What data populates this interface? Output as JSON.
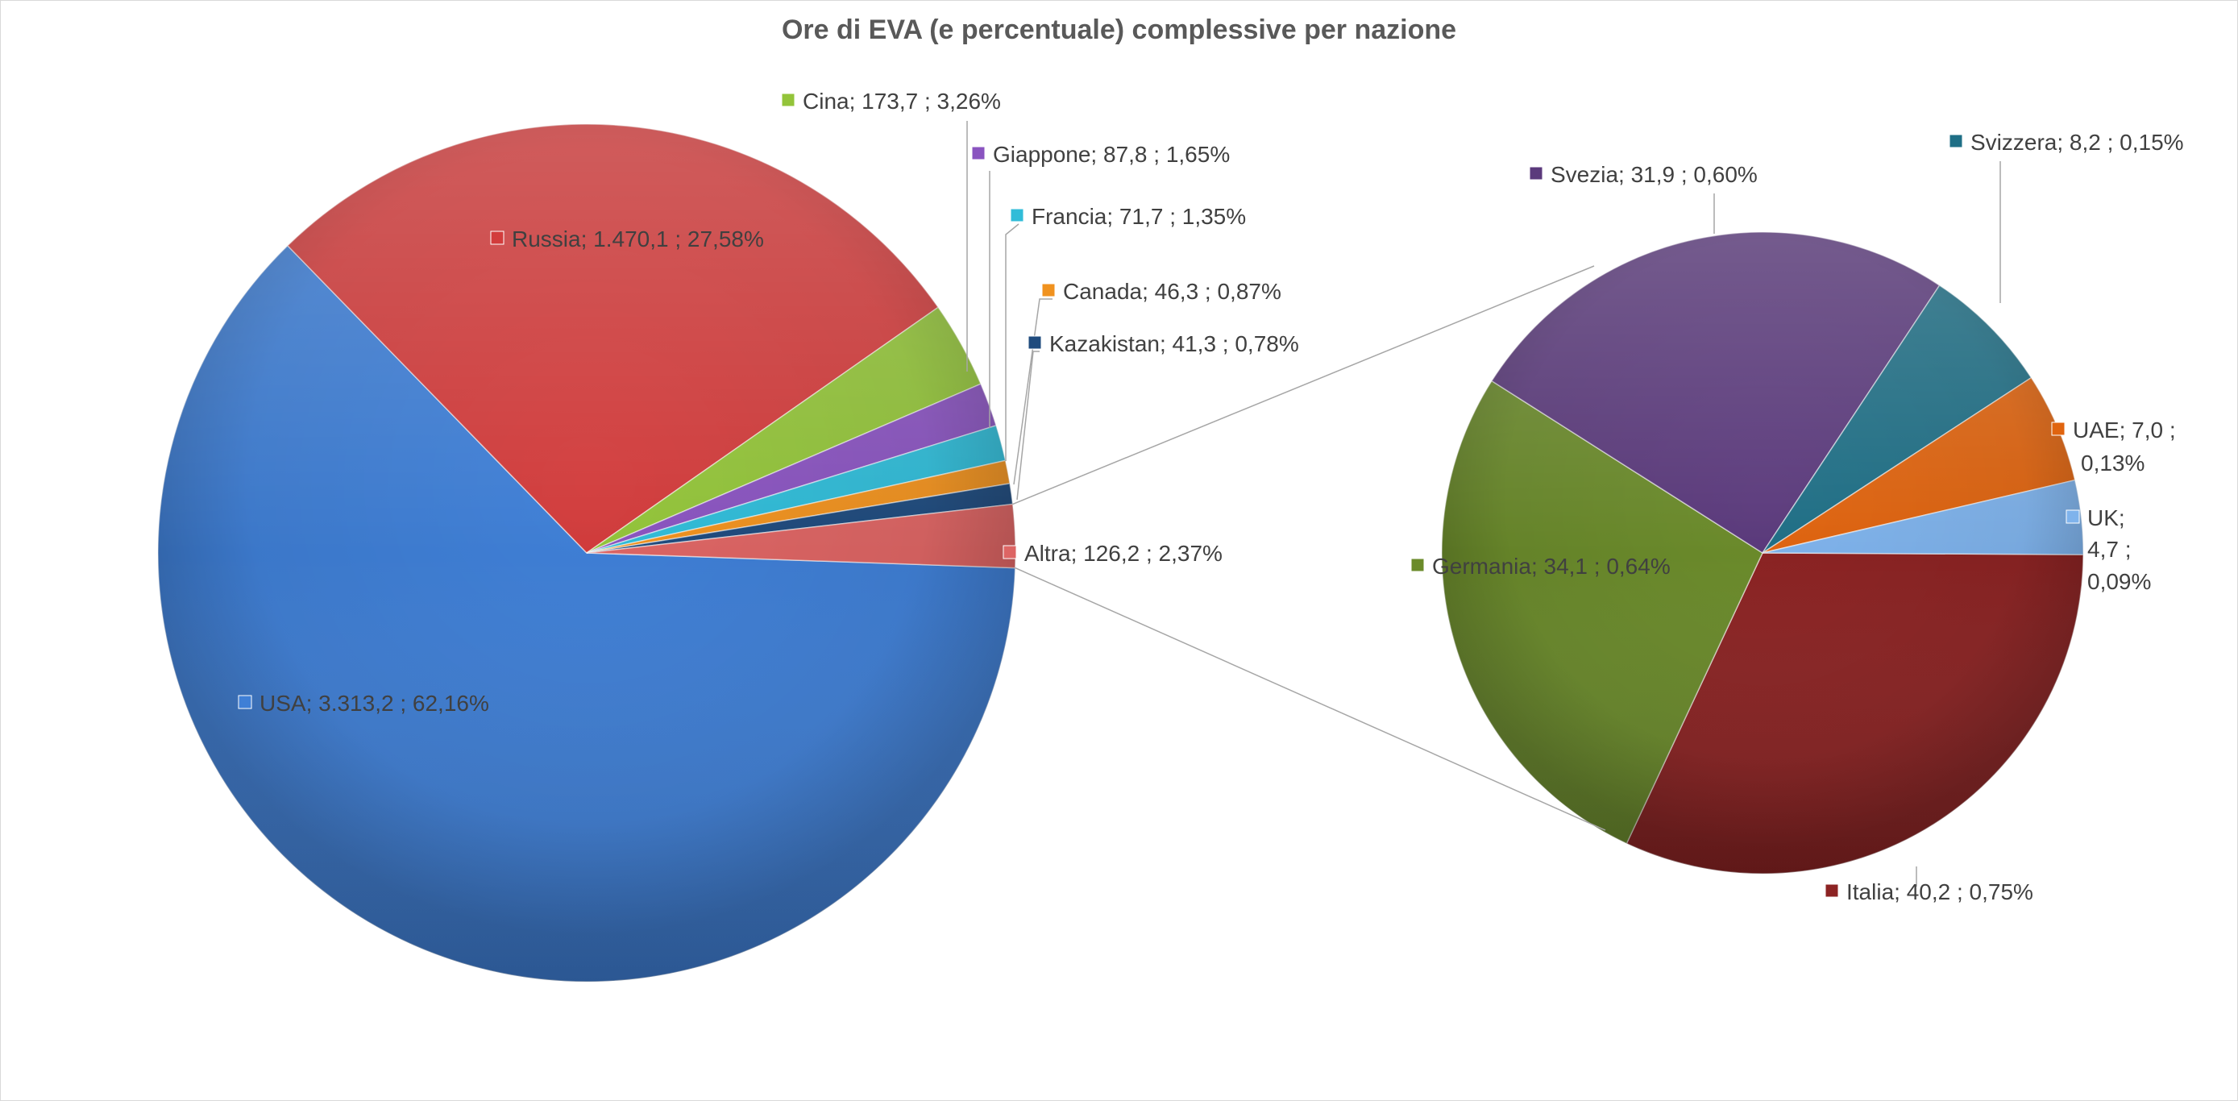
{
  "chart_data": {
    "type": "pie",
    "subtype": "pie-of-pie",
    "title": "Ore di EVA (e percentuale) complessive per nazione",
    "label_separator": ";",
    "main_pie": [
      {
        "name": "USA",
        "value": 3313.2,
        "value_label": "3.313,2",
        "percent_label": "62,16%",
        "color": "#3f7fd6"
      },
      {
        "name": "Russia",
        "value": 1470.1,
        "value_label": "1.470,1",
        "percent_label": "27,58%",
        "color": "#d23c3c"
      },
      {
        "name": "Cina",
        "value": 173.7,
        "value_label": "173,7",
        "percent_label": "3,26%",
        "color": "#93c43a"
      },
      {
        "name": "Giappone",
        "value": 87.8,
        "value_label": "87,8",
        "percent_label": "1,65%",
        "color": "#8a54c0"
      },
      {
        "name": "Francia",
        "value": 71.7,
        "value_label": "71,7",
        "percent_label": "1,35%",
        "color": "#30bcd8"
      },
      {
        "name": "Canada",
        "value": 46.3,
        "value_label": "46,3",
        "percent_label": "0,87%",
        "color": "#f0921f"
      },
      {
        "name": "Kazakistan",
        "value": 41.3,
        "value_label": "41,3",
        "percent_label": "0,78%",
        "color": "#1f4b7e"
      },
      {
        "name": "Altra",
        "value": 126.2,
        "value_label": "126,2",
        "percent_label": "2,37%",
        "color": "#dd6564"
      }
    ],
    "secondary_pie": [
      {
        "name": "Italia",
        "value": 40.2,
        "value_label": "40,2",
        "percent_label": "0,75%",
        "color": "#8c2323"
      },
      {
        "name": "Germania",
        "value": 34.1,
        "value_label": "34,1",
        "percent_label": "0,64%",
        "color": "#6b8b2b"
      },
      {
        "name": "Svezia",
        "value": 31.9,
        "value_label": "31,9",
        "percent_label": "0,60%",
        "color": "#5b3a7c"
      },
      {
        "name": "Svizzera",
        "value": 8.2,
        "value_label": "8,2",
        "percent_label": "0,15%",
        "color": "#1f6f86"
      },
      {
        "name": "UAE",
        "value": 7.0,
        "value_label": "7,0",
        "percent_label": "0,13%",
        "color": "#e0640f"
      },
      {
        "name": "UK",
        "value": 4.7,
        "value_label": "4,7",
        "percent_label": "0,09%",
        "color": "#7fb3ec"
      }
    ],
    "legend": "none"
  }
}
